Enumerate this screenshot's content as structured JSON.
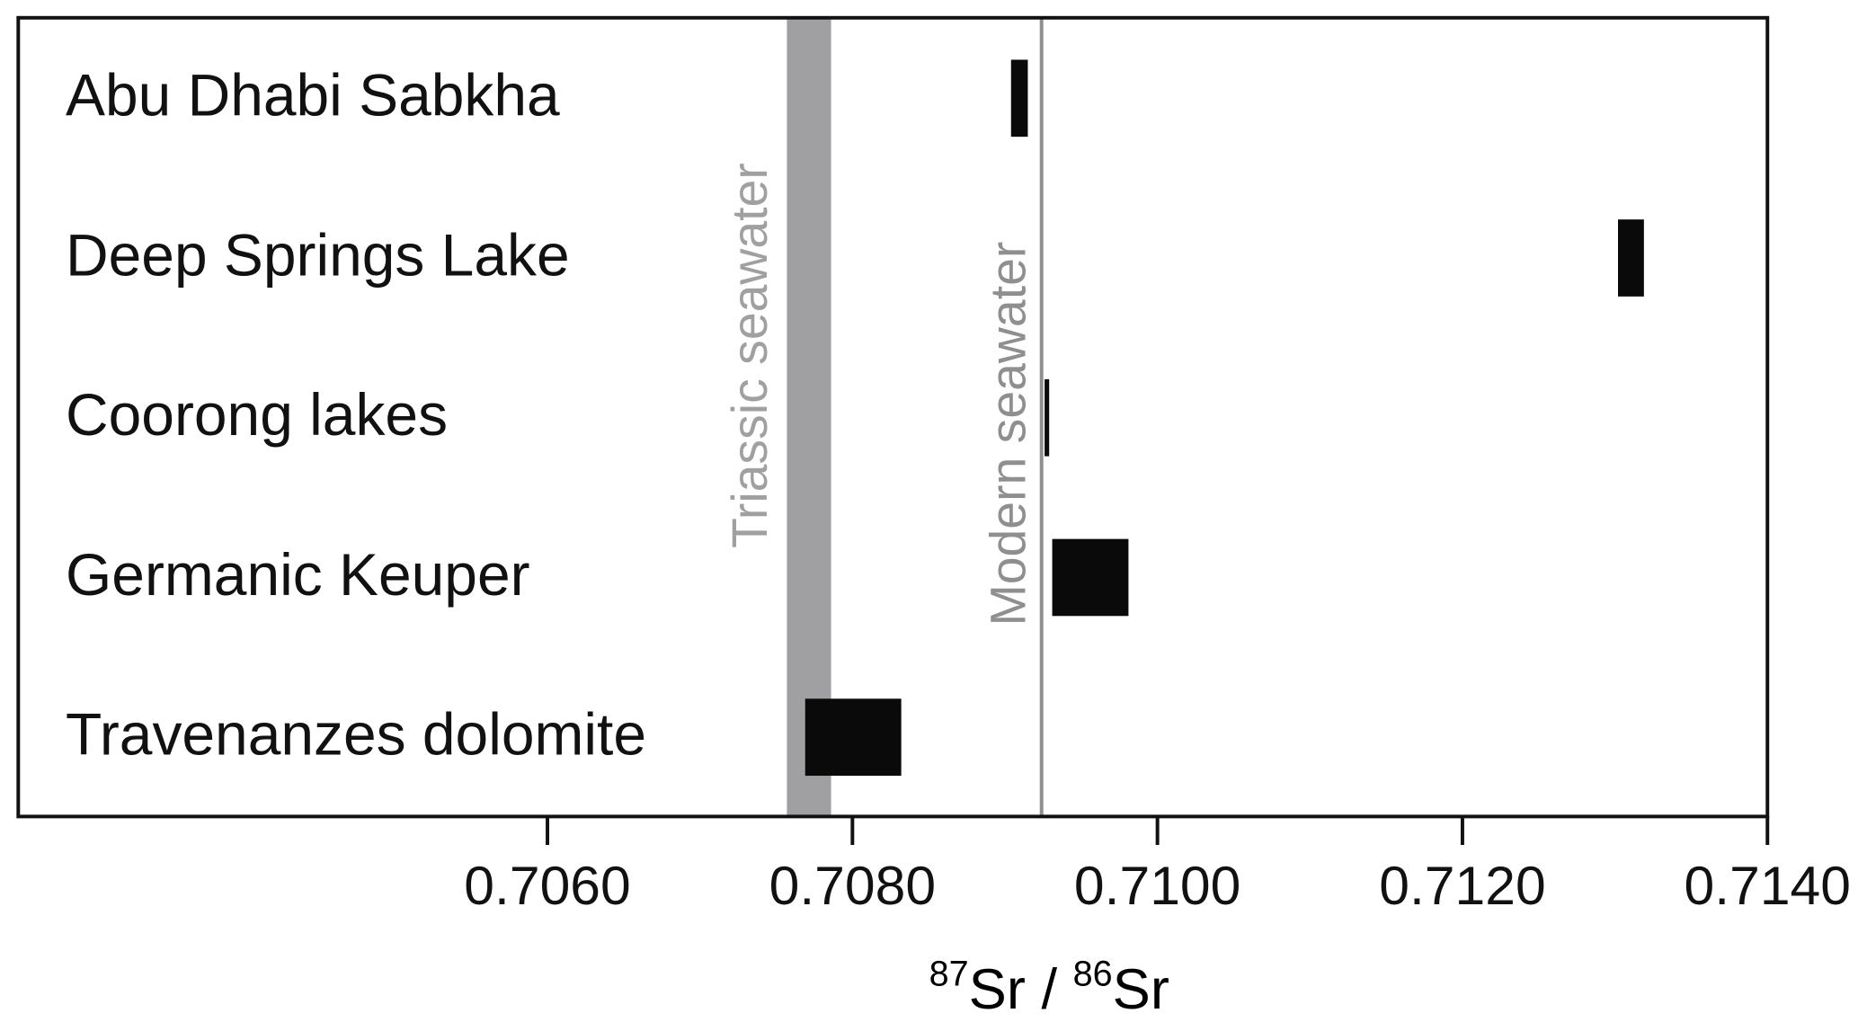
{
  "chart_data": {
    "type": "range",
    "categories": [
      "Abu Dhabi Sabkha",
      "Deep Springs Lake",
      "Coorong lakes",
      "Germanic Keuper",
      "Travenanzes dolomite"
    ],
    "low": [
      0.70904,
      0.71302,
      0.70926,
      0.70931,
      0.70769
    ],
    "high": [
      0.70915,
      0.71319,
      0.70929,
      0.70981,
      0.70832
    ],
    "color": "#0a0a0a",
    "xlim": [
      0.70253,
      0.714
    ],
    "xticks": [
      {
        "value": 0.706,
        "label": "0.7060"
      },
      {
        "value": 0.708,
        "label": "0.7080"
      },
      {
        "value": 0.71,
        "label": "0.7100"
      },
      {
        "value": 0.712,
        "label": "0.7120"
      },
      {
        "value": 0.714,
        "label": "0.7140"
      }
    ],
    "x_label_parts": [
      "87",
      "Sr / ",
      "86",
      "Sr"
    ],
    "reference_bands": [
      {
        "label": "Triassic seawater",
        "low": 0.70757,
        "high": 0.70786,
        "color": "#a0a0a2"
      }
    ],
    "reference_lines": [
      {
        "label": "Modern seawater",
        "value": 0.70924,
        "color": "#8f8f8f"
      }
    ]
  }
}
